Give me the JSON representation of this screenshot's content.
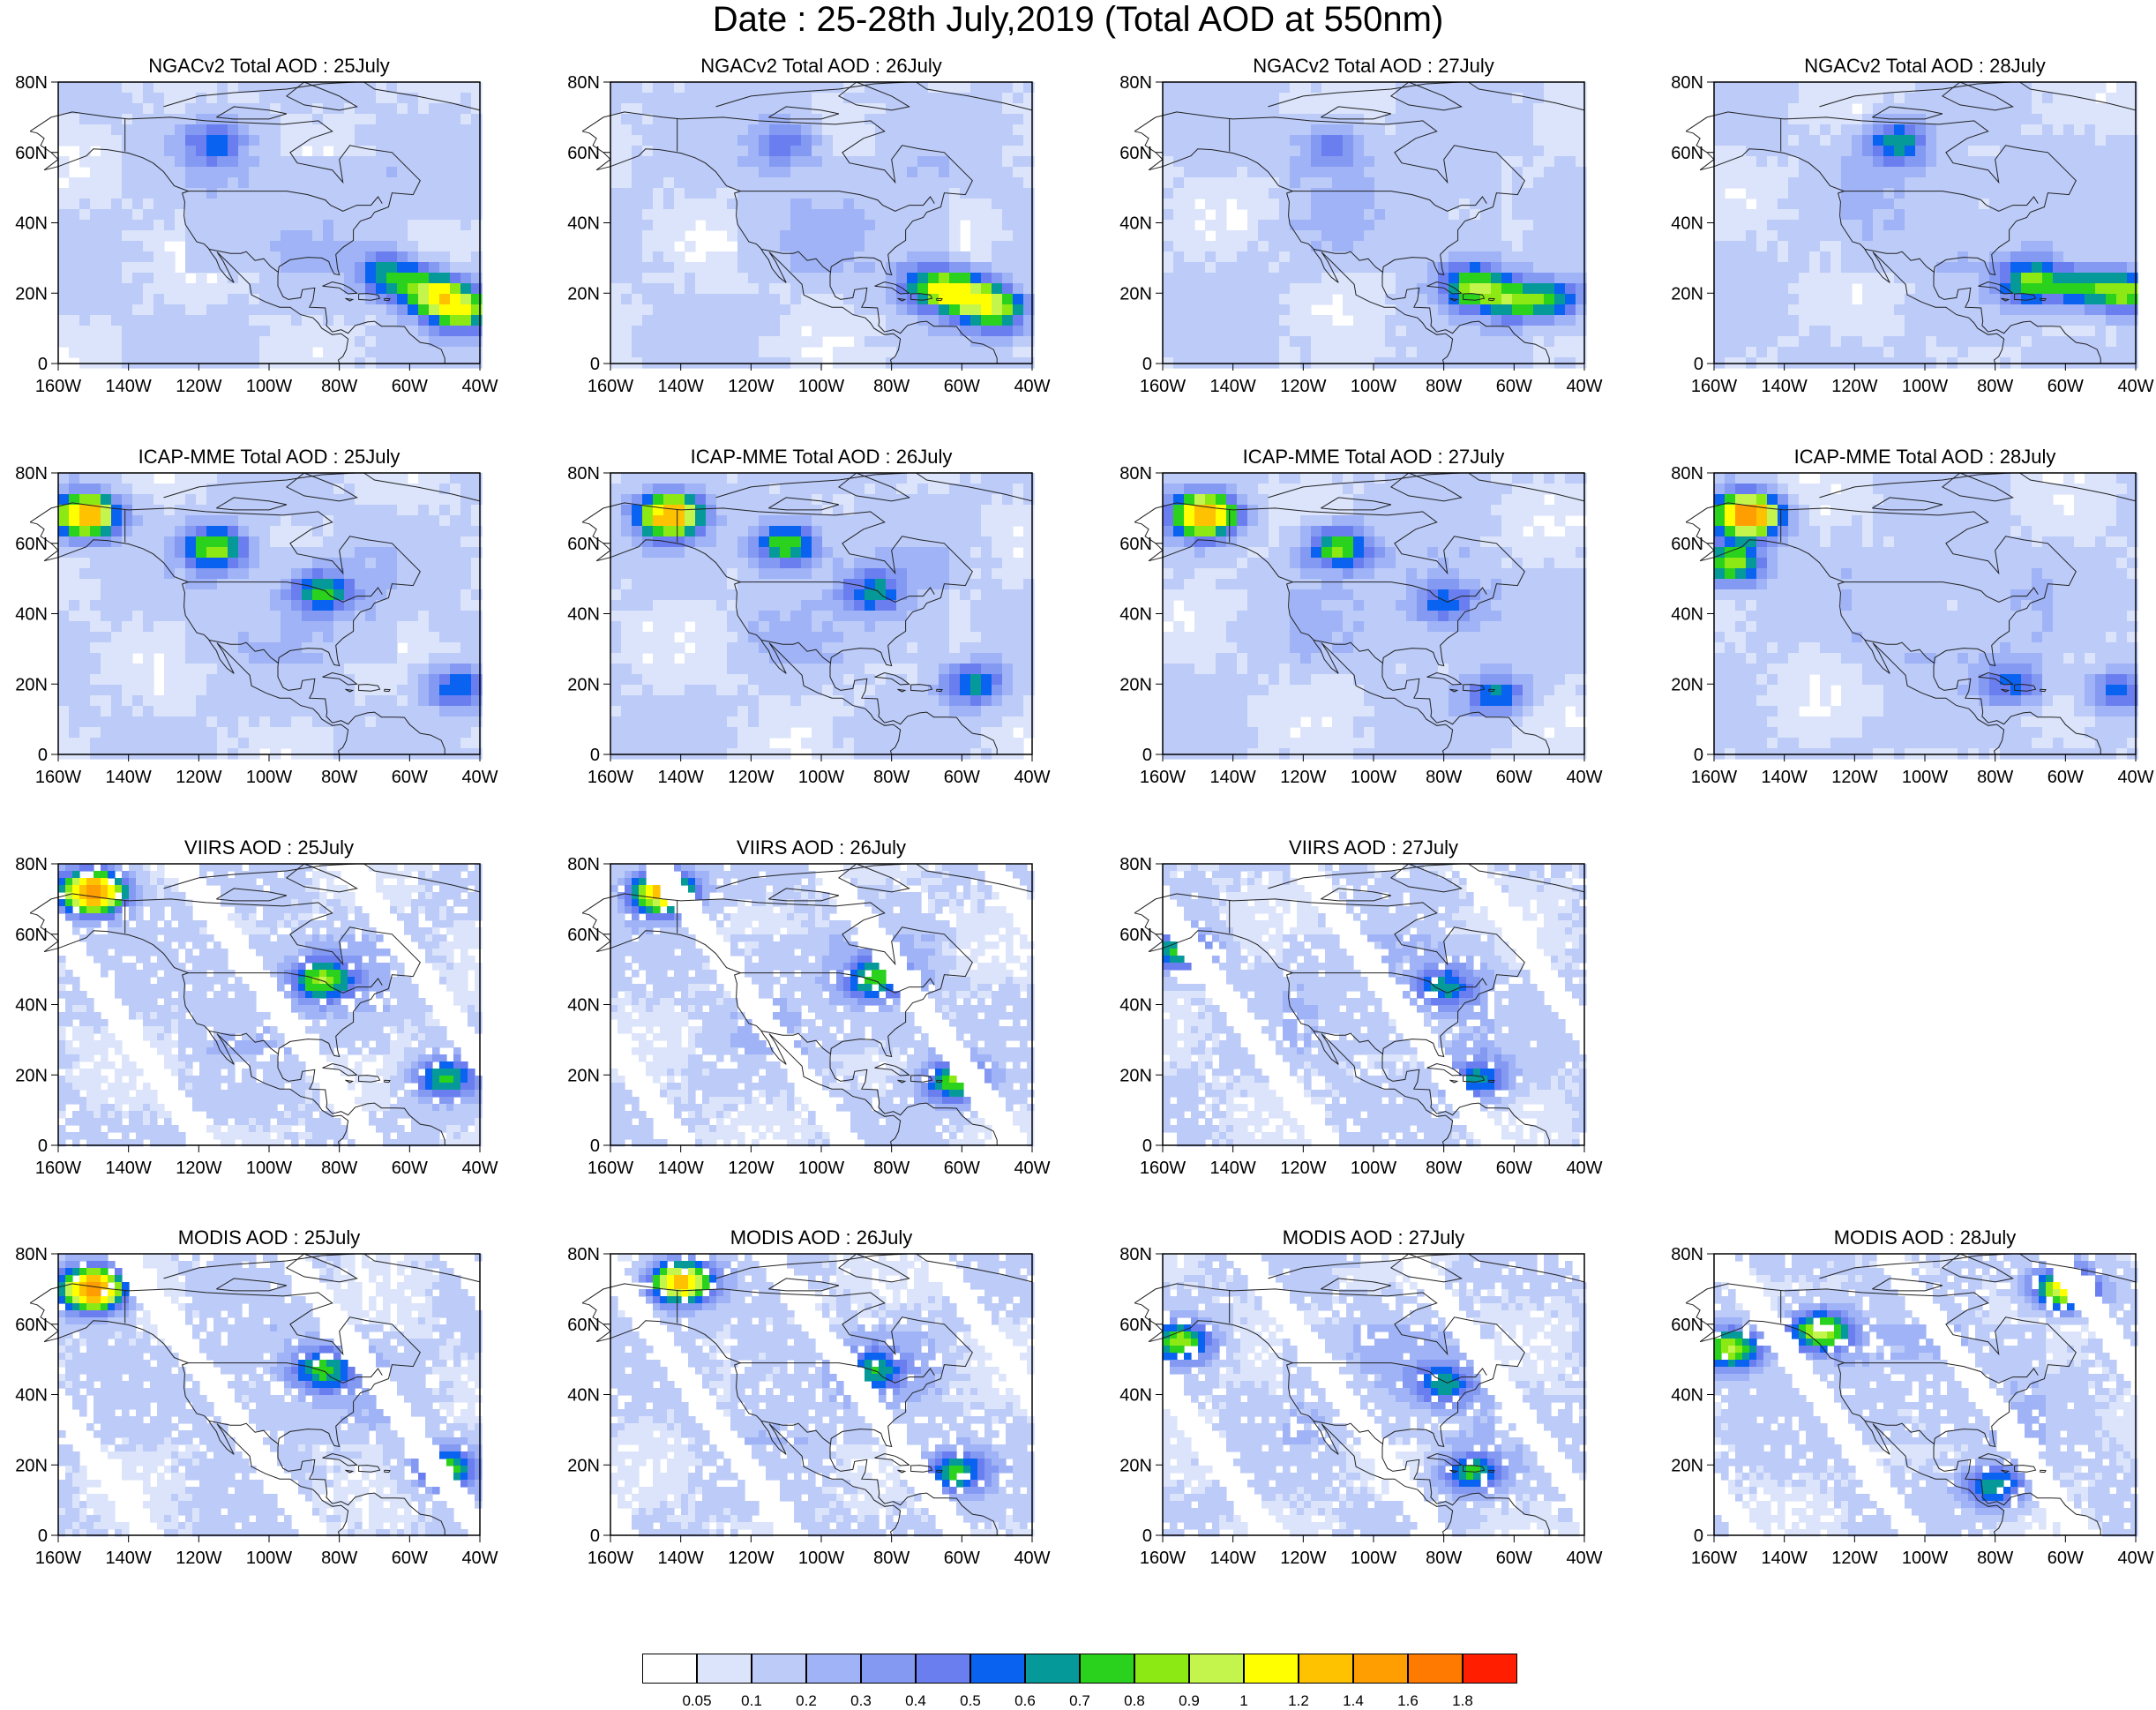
{
  "title": "Date : 25-28th July,2019 (Total AOD at 550nm)",
  "chart_data": {
    "type": "heatmap",
    "title": "Date : 25-28th July,2019 (Total AOD at 550nm)",
    "quantity": "Total AOD at 550nm",
    "xlim": [
      -160,
      -40
    ],
    "ylim": [
      0,
      80
    ],
    "x_ticks": [
      -160,
      -140,
      -120,
      -100,
      -80,
      -60,
      -40
    ],
    "y_ticks": [
      0,
      20,
      40,
      60,
      80
    ],
    "x_tick_labels": [
      "160W",
      "140W",
      "120W",
      "100W",
      "80W",
      "60W",
      "40W"
    ],
    "y_tick_labels": [
      "0",
      "20N",
      "40N",
      "60N",
      "80N"
    ],
    "colorbar": {
      "levels": [
        "0.05",
        "0.1",
        "0.2",
        "0.3",
        "0.4",
        "0.5",
        "0.6",
        "0.7",
        "0.8",
        "0.9",
        "1",
        "1.2",
        "1.4",
        "1.6",
        "1.8"
      ],
      "colors": [
        "#ffffff",
        "#dbe4fb",
        "#bccbf8",
        "#9fb3f6",
        "#8499f2",
        "#6a7ef0",
        "#0a62f0",
        "#059a99",
        "#2ad21d",
        "#8ce914",
        "#c4f54c",
        "#ffff00",
        "#ffc200",
        "#ff9e00",
        "#ff7a00",
        "#ff1f00"
      ]
    },
    "panels": [
      {
        "title": "NGACv2 Total AOD : 25July",
        "model": "NGACv2",
        "date": "25July",
        "plumes": [
          {
            "lon": -53,
            "lat": 20,
            "intensity": 0.85
          },
          {
            "lon": -45,
            "lat": 15,
            "intensity": 0.8
          },
          {
            "lon": -65,
            "lat": 25,
            "intensity": 0.6
          },
          {
            "lon": -115,
            "lat": 63,
            "intensity": 0.45
          }
        ]
      },
      {
        "title": "NGACv2 Total AOD : 26July",
        "model": "NGACv2",
        "date": "26July",
        "plumes": [
          {
            "lon": -60,
            "lat": 20,
            "intensity": 0.85
          },
          {
            "lon": -50,
            "lat": 15,
            "intensity": 0.75
          },
          {
            "lon": -70,
            "lat": 22,
            "intensity": 0.55
          },
          {
            "lon": -110,
            "lat": 63,
            "intensity": 0.4
          }
        ]
      },
      {
        "title": "NGACv2 Total AOD : 27July",
        "model": "NGACv2",
        "date": "27July",
        "plumes": [
          {
            "lon": -72,
            "lat": 22,
            "intensity": 0.75
          },
          {
            "lon": -60,
            "lat": 18,
            "intensity": 0.6
          },
          {
            "lon": -48,
            "lat": 18,
            "intensity": 0.55
          },
          {
            "lon": -112,
            "lat": 62,
            "intensity": 0.4
          }
        ]
      },
      {
        "title": "NGACv2 Total AOD : 28July",
        "model": "NGACv2",
        "date": "28July",
        "plumes": [
          {
            "lon": -70,
            "lat": 23,
            "intensity": 0.7
          },
          {
            "lon": -55,
            "lat": 22,
            "intensity": 0.6
          },
          {
            "lon": -42,
            "lat": 20,
            "intensity": 0.75
          },
          {
            "lon": -108,
            "lat": 63,
            "intensity": 0.6
          }
        ]
      },
      {
        "title": "ICAP-MME Total AOD : 25July",
        "model": "ICAP-MME",
        "date": "25July",
        "plumes": [
          {
            "lon": -152,
            "lat": 68,
            "intensity": 1.3
          },
          {
            "lon": -115,
            "lat": 59,
            "intensity": 0.75
          },
          {
            "lon": -85,
            "lat": 46,
            "intensity": 0.6
          },
          {
            "lon": -47,
            "lat": 19,
            "intensity": 0.5
          }
        ]
      },
      {
        "title": "ICAP-MME Total AOD : 26July",
        "model": "ICAP-MME",
        "date": "26July",
        "plumes": [
          {
            "lon": -143,
            "lat": 68,
            "intensity": 1.3
          },
          {
            "lon": -110,
            "lat": 60,
            "intensity": 0.75
          },
          {
            "lon": -85,
            "lat": 46,
            "intensity": 0.5
          },
          {
            "lon": -57,
            "lat": 20,
            "intensity": 0.55
          }
        ]
      },
      {
        "title": "ICAP-MME Total AOD : 27July",
        "model": "ICAP-MME",
        "date": "27July",
        "plumes": [
          {
            "lon": -148,
            "lat": 68,
            "intensity": 1.3
          },
          {
            "lon": -110,
            "lat": 59,
            "intensity": 0.7
          },
          {
            "lon": -80,
            "lat": 43,
            "intensity": 0.45
          },
          {
            "lon": -65,
            "lat": 17,
            "intensity": 0.5
          }
        ]
      },
      {
        "title": "ICAP-MME Total AOD : 28July",
        "model": "ICAP-MME",
        "date": "28July",
        "plumes": [
          {
            "lon": -150,
            "lat": 68,
            "intensity": 1.5
          },
          {
            "lon": -155,
            "lat": 54,
            "intensity": 0.8
          },
          {
            "lon": -75,
            "lat": 20,
            "intensity": 0.45
          },
          {
            "lon": -45,
            "lat": 18,
            "intensity": 0.45
          }
        ]
      },
      {
        "title": "VIIRS AOD : 25July",
        "model": "VIIRS",
        "date": "25July",
        "plumes": [
          {
            "lon": -150,
            "lat": 72,
            "intensity": 1.5
          },
          {
            "lon": -85,
            "lat": 47,
            "intensity": 0.7
          },
          {
            "lon": -50,
            "lat": 19,
            "intensity": 0.6
          }
        ]
      },
      {
        "title": "VIIRS AOD : 26July",
        "model": "VIIRS",
        "date": "26July",
        "plumes": [
          {
            "lon": -145,
            "lat": 72,
            "intensity": 1.2
          },
          {
            "lon": -85,
            "lat": 47,
            "intensity": 0.6
          },
          {
            "lon": -62,
            "lat": 18,
            "intensity": 0.7
          }
        ]
      },
      {
        "title": "VIIRS AOD : 27July",
        "model": "VIIRS",
        "date": "27July",
        "plumes": [
          {
            "lon": -155,
            "lat": 55,
            "intensity": 0.6
          },
          {
            "lon": -80,
            "lat": 45,
            "intensity": 0.5
          },
          {
            "lon": -70,
            "lat": 19,
            "intensity": 0.55
          }
        ]
      },
      {
        "title": "MODIS AOD : 25July",
        "model": "MODIS",
        "date": "25July",
        "plumes": [
          {
            "lon": -150,
            "lat": 70,
            "intensity": 1.5
          },
          {
            "lon": -85,
            "lat": 47,
            "intensity": 0.6
          },
          {
            "lon": -50,
            "lat": 19,
            "intensity": 0.7
          }
        ]
      },
      {
        "title": "MODIS AOD : 26July",
        "model": "MODIS",
        "date": "26July",
        "plumes": [
          {
            "lon": -140,
            "lat": 72,
            "intensity": 1.2
          },
          {
            "lon": -85,
            "lat": 47,
            "intensity": 0.5
          },
          {
            "lon": -62,
            "lat": 18,
            "intensity": 0.65
          }
        ]
      },
      {
        "title": "MODIS AOD : 27July",
        "model": "MODIS",
        "date": "27July",
        "plumes": [
          {
            "lon": -155,
            "lat": 55,
            "intensity": 0.7
          },
          {
            "lon": -80,
            "lat": 43,
            "intensity": 0.5
          },
          {
            "lon": -72,
            "lat": 18,
            "intensity": 0.6
          }
        ]
      },
      {
        "title": "MODIS AOD : 28July",
        "model": "MODIS",
        "date": "28July",
        "plumes": [
          {
            "lon": -155,
            "lat": 53,
            "intensity": 0.8
          },
          {
            "lon": -130,
            "lat": 58,
            "intensity": 0.9
          },
          {
            "lon": -80,
            "lat": 14,
            "intensity": 0.6
          },
          {
            "lon": -60,
            "lat": 70,
            "intensity": 1.0
          }
        ]
      }
    ]
  }
}
